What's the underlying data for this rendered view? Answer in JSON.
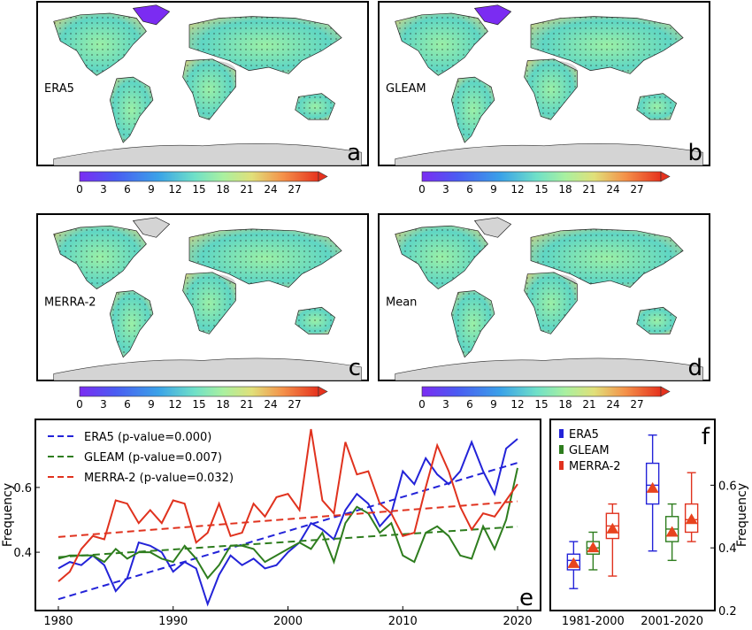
{
  "colors": {
    "era5": "#2323d8",
    "gleam": "#2e7d1e",
    "merra2": "#e0321e",
    "ocean": "#ffffff",
    "missing_land": "#d4d4d4",
    "marker": "#e8431e"
  },
  "colorbar": {
    "ticks": [
      "0",
      "3",
      "6",
      "9",
      "12",
      "15",
      "18",
      "21",
      "24",
      "27"
    ],
    "min": 0,
    "max": 30,
    "extend": "max",
    "colormap": "rainbow"
  },
  "chart_data": [
    {
      "type": "heatmap",
      "panel": "a",
      "label": "ERA5",
      "letter": "a",
      "colorbar_ticks": [
        "0",
        "3",
        "6",
        "9",
        "12",
        "15",
        "18",
        "21",
        "24",
        "27"
      ]
    },
    {
      "type": "heatmap",
      "panel": "b",
      "label": "GLEAM",
      "letter": "b",
      "colorbar_ticks": [
        "0",
        "3",
        "6",
        "9",
        "12",
        "15",
        "18",
        "21",
        "24",
        "27"
      ]
    },
    {
      "type": "heatmap",
      "panel": "c",
      "label": "MERRA-2",
      "letter": "c",
      "colorbar_ticks": [
        "0",
        "3",
        "6",
        "9",
        "12",
        "15",
        "18",
        "21",
        "24",
        "27"
      ]
    },
    {
      "type": "heatmap",
      "panel": "d",
      "label": "Mean",
      "letter": "d",
      "colorbar_ticks": [
        "0",
        "3",
        "6",
        "9",
        "12",
        "15",
        "18",
        "21",
        "24",
        "27"
      ]
    },
    {
      "type": "line",
      "panel": "e",
      "letter": "e",
      "ylabel": "Frequency",
      "xlim": [
        1978,
        2022
      ],
      "ylim": [
        0.22,
        0.81
      ],
      "xticks": [
        "1980",
        "1990",
        "2000",
        "2010",
        "2020"
      ],
      "yticks": [
        "0.4",
        "0.6"
      ],
      "x": [
        1980,
        1981,
        1982,
        1983,
        1984,
        1985,
        1986,
        1987,
        1988,
        1989,
        1990,
        1991,
        1992,
        1993,
        1994,
        1995,
        1996,
        1997,
        1998,
        1999,
        2000,
        2001,
        2002,
        2003,
        2004,
        2005,
        2006,
        2007,
        2008,
        2009,
        2010,
        2011,
        2012,
        2013,
        2014,
        2015,
        2016,
        2017,
        2018,
        2019,
        2020
      ],
      "legend_position": "top-left",
      "series": [
        {
          "name": "ERA5 (p-value=0.000)",
          "key": "era5",
          "values": [
            0.35,
            0.37,
            0.36,
            0.39,
            0.36,
            0.28,
            0.32,
            0.43,
            0.42,
            0.4,
            0.34,
            0.37,
            0.35,
            0.24,
            0.33,
            0.39,
            0.36,
            0.38,
            0.35,
            0.36,
            0.4,
            0.43,
            0.49,
            0.47,
            0.44,
            0.53,
            0.58,
            0.55,
            0.48,
            0.52,
            0.65,
            0.61,
            0.69,
            0.64,
            0.61,
            0.65,
            0.74,
            0.65,
            0.58,
            0.72,
            0.75
          ],
          "trend": [
            0.255,
            0.676
          ]
        },
        {
          "name": "GLEAM (p-value=0.007)",
          "key": "gleam",
          "values": [
            0.38,
            0.39,
            0.39,
            0.39,
            0.37,
            0.41,
            0.38,
            0.4,
            0.4,
            0.38,
            0.37,
            0.42,
            0.38,
            0.32,
            0.36,
            0.42,
            0.42,
            0.41,
            0.37,
            0.39,
            0.41,
            0.43,
            0.41,
            0.46,
            0.37,
            0.49,
            0.54,
            0.52,
            0.46,
            0.49,
            0.39,
            0.37,
            0.46,
            0.48,
            0.45,
            0.39,
            0.38,
            0.48,
            0.41,
            0.5,
            0.66
          ],
          "trend": [
            0.385,
            0.479
          ]
        },
        {
          "name": "MERRA-2 (p-value=0.032)",
          "key": "merra2",
          "values": [
            0.31,
            0.34,
            0.41,
            0.45,
            0.44,
            0.56,
            0.55,
            0.49,
            0.53,
            0.49,
            0.56,
            0.55,
            0.43,
            0.46,
            0.55,
            0.45,
            0.46,
            0.55,
            0.51,
            0.57,
            0.58,
            0.53,
            0.78,
            0.56,
            0.52,
            0.74,
            0.64,
            0.65,
            0.55,
            0.52,
            0.45,
            0.46,
            0.6,
            0.73,
            0.65,
            0.54,
            0.47,
            0.52,
            0.51,
            0.56,
            0.61
          ],
          "trend": [
            0.447,
            0.557
          ]
        }
      ]
    },
    {
      "type": "box",
      "panel": "f",
      "letter": "f",
      "ylabel": "Frequency",
      "ylim": [
        0.2,
        0.81
      ],
      "yticks": [
        "0.2",
        "0.4",
        "0.6"
      ],
      "categories": [
        "1981-2000",
        "2001-2020"
      ],
      "legend_position": "top-left",
      "series": [
        {
          "name": "ERA5",
          "key": "era5",
          "boxes": [
            {
              "min": 0.27,
              "q1": 0.33,
              "median": 0.36,
              "q3": 0.38,
              "max": 0.42,
              "mean": 0.35
            },
            {
              "min": 0.39,
              "q1": 0.54,
              "median": 0.6,
              "q3": 0.67,
              "max": 0.76,
              "mean": 0.59
            }
          ]
        },
        {
          "name": "GLEAM",
          "key": "gleam",
          "boxes": [
            {
              "min": 0.33,
              "q1": 0.38,
              "median": 0.4,
              "q3": 0.42,
              "max": 0.45,
              "mean": 0.4
            },
            {
              "min": 0.36,
              "q1": 0.42,
              "median": 0.46,
              "q3": 0.5,
              "max": 0.54,
              "mean": 0.45
            }
          ]
        },
        {
          "name": "MERRA-2",
          "key": "merra2",
          "boxes": [
            {
              "min": 0.31,
              "q1": 0.43,
              "median": 0.47,
              "q3": 0.51,
              "max": 0.54,
              "mean": 0.46
            },
            {
              "min": 0.42,
              "q1": 0.45,
              "median": 0.49,
              "q3": 0.54,
              "max": 0.64,
              "mean": 0.49
            }
          ]
        }
      ]
    }
  ]
}
